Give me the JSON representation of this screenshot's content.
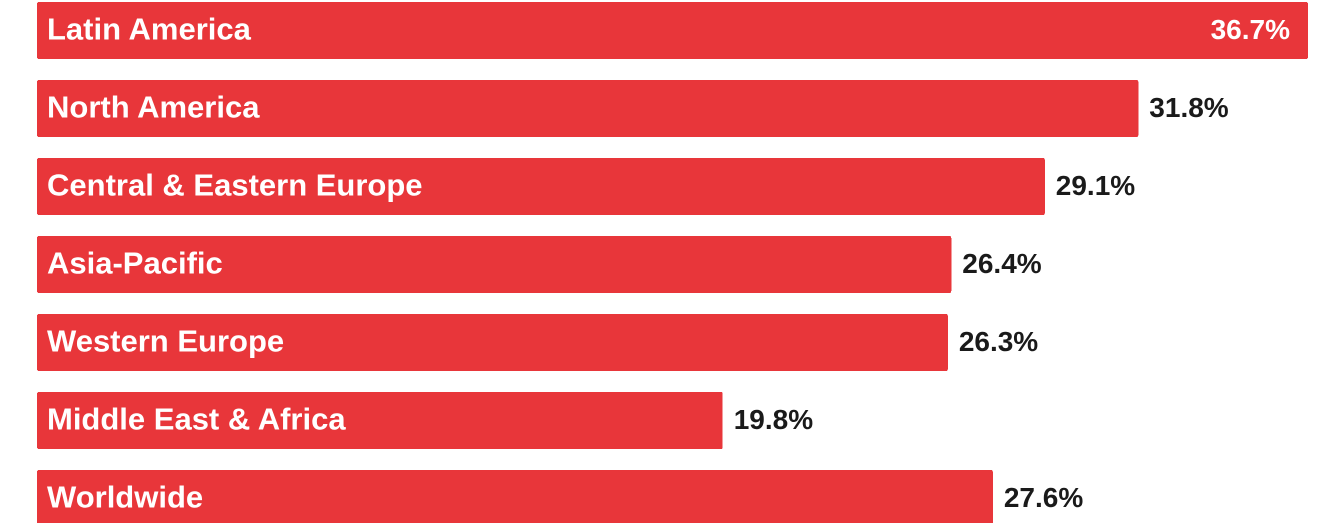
{
  "chart_data": {
    "type": "bar",
    "orientation": "horizontal",
    "categories": [
      "Latin America",
      "North America",
      "Central & Eastern Europe",
      "Asia-Pacific",
      "Western Europe",
      "Middle East & Africa",
      "Worldwide"
    ],
    "values": [
      36.7,
      31.8,
      29.1,
      26.4,
      26.3,
      19.8,
      27.6
    ],
    "value_labels": [
      "36.7%",
      "31.8%",
      "29.1%",
      "26.4%",
      "26.3%",
      "19.8%",
      "27.6%"
    ],
    "title": "",
    "xlabel": "",
    "ylabel": "",
    "xlim": [
      0,
      36.7
    ],
    "grid": false,
    "legend": "none",
    "bar_color": "#e8363a",
    "label_color_inside": "#ffffff",
    "label_color_outside": "#1a1a1a"
  }
}
